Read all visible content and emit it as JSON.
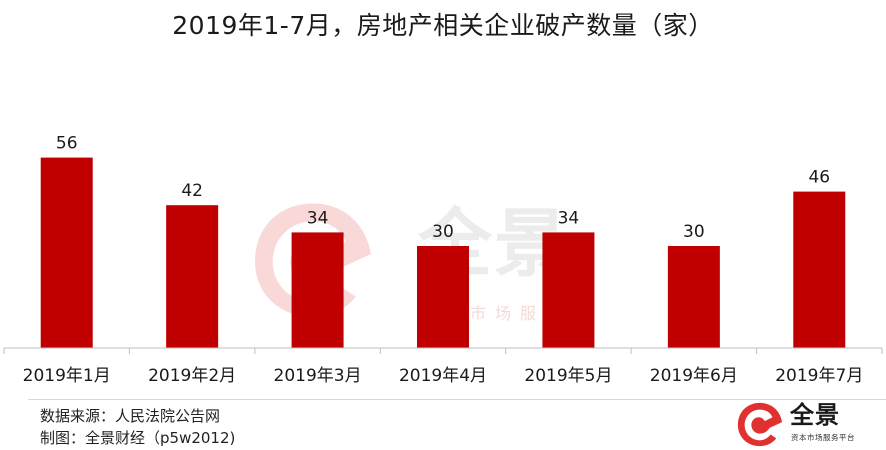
{
  "chart_data": {
    "type": "bar",
    "title": "2019年1-7月，房地产相关企业破产数量（家）",
    "categories": [
      "2019年1月",
      "2019年2月",
      "2019年3月",
      "2019年4月",
      "2019年5月",
      "2019年6月",
      "2019年7月"
    ],
    "values": [
      56,
      42,
      34,
      30,
      34,
      30,
      46
    ],
    "xlabel": "",
    "ylabel": "",
    "ylim": [
      0,
      80
    ],
    "grid": false,
    "bar_color": "#c00000",
    "data_labels": true
  },
  "footer": {
    "source": "数据来源：人民法院公告网",
    "maker": "制图：全景财经（p5w2012)"
  },
  "watermark": {
    "brand": "全景",
    "slogan": "资本市场服务平台"
  },
  "logo": {
    "brand": "全景",
    "slogan": "资本市场服务平台"
  },
  "colors": {
    "bar": "#c00000",
    "brand_red": "#c0392b"
  }
}
